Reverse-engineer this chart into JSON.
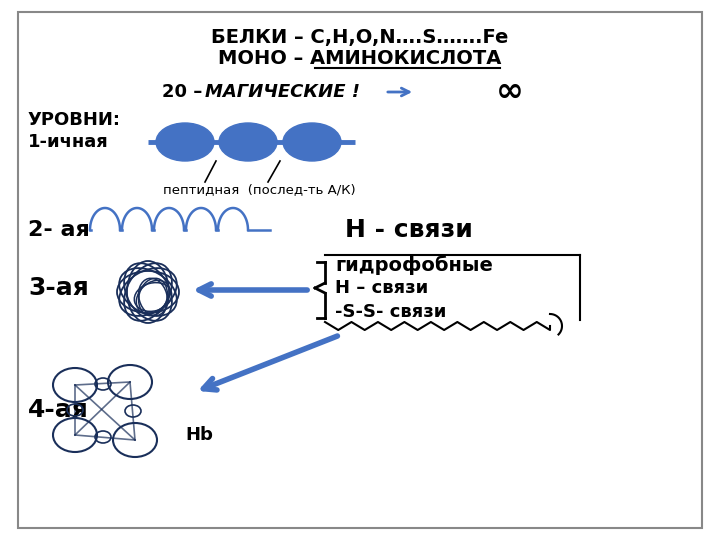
{
  "bg_color": "#ffffff",
  "title1": "БЕЛКИ – C,H,O,N….S…….Fe",
  "title2_pre": "МОНО – ",
  "title2_under": "АМИНОКИСЛОТА",
  "text_20_italic": "20 –МАГИЧЕСКИЕ !",
  "text_inf": "∞",
  "text_levels": "УРОВНИ:",
  "text_1": "1-ичная",
  "text_peptide": "пептидная  (послед-ть А/К)",
  "text_2": "2- ая",
  "text_H_bonds": "Н - связи",
  "text_3": "3-ая",
  "text_hydrophobic": "гидрофобные",
  "text_H_bonds2": "Н – связи",
  "text_SS": "-S-S- связи",
  "text_4": "4-ая",
  "text_Hb": "Hb",
  "blue_color": "#4472C4",
  "arrow_blue": "#4472C4",
  "dark_line": "#1a2f5a"
}
